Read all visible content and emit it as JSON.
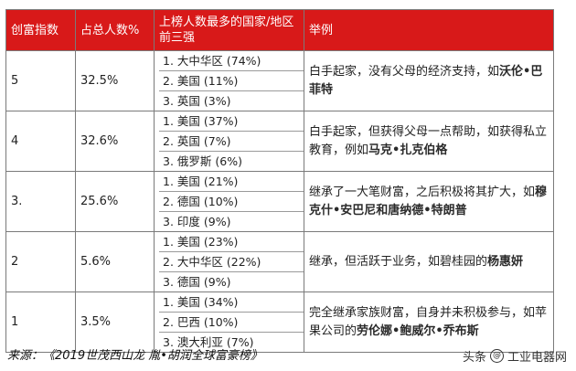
{
  "headers": [
    "创富指数",
    "占总人数%",
    "上榜人数最多的国家/地区前三强",
    "举例"
  ],
  "rows": [
    {
      "index": "5",
      "percent": "32.5%",
      "countries": [
        "1. 大中华区 (74%)",
        "2. 美国 (11%)",
        "3. 英国 (3%)"
      ],
      "example_text": "白手起家，没有父母的经济支持，如",
      "example_name": "沃伦•巴菲特",
      "example_tail": ""
    },
    {
      "index": "4",
      "percent": "32.6%",
      "countries": [
        "1. 美国 (37%)",
        "2. 英国 (7%)",
        "3. 俄罗斯 (6%)"
      ],
      "example_text": "白手起家，但获得父母一点帮助，如获得私立教育，例如",
      "example_name": "马克•扎克伯格",
      "example_tail": ""
    },
    {
      "index": "3.",
      "percent": "25.6%",
      "countries": [
        "1. 美国 (21%)",
        "2. 德国 (10%)",
        "3. 印度 (9%)"
      ],
      "example_text": "继承了一大笔财富，之后积极将其扩大，如",
      "example_name": "穆克什•安巴尼和唐纳德•特朗普",
      "example_tail": ""
    },
    {
      "index": "2",
      "percent": "5.6%",
      "countries": [
        "1. 美国 (23%)",
        "2. 大中华区 (22%)",
        "3. 德国 (9%)"
      ],
      "example_text": "继承，但活跃于业务，如碧桂园的",
      "example_name": "杨惠妍",
      "example_tail": ""
    },
    {
      "index": "1",
      "percent": "3.5%",
      "countries": [
        "1. 美国 (34%)",
        "2. 巴西 (10%)",
        "3. 澳大利亚 (7%)"
      ],
      "example_text": "完全继承家族财富，自身并未积极参与，如苹果公司的",
      "example_name": "劳伦娜•鲍威尔•乔布斯",
      "example_tail": ""
    }
  ],
  "source": "来源：《2019世茂西山龙 胤•胡润全球富豪榜》",
  "watermark": {
    "prefix": "头条",
    "handle": "工业电器网"
  }
}
